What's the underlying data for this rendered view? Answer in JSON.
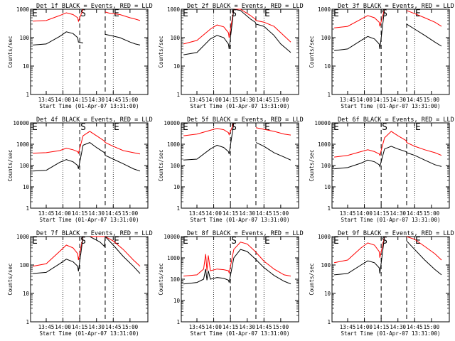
{
  "chart_data": [
    {
      "type": "line",
      "title": "Det 1f BLACK = Events, RED = LLD",
      "xlabel": "Start Time (01-Apr-07 13:31:00)",
      "ylabel": "Counts/sec",
      "ylim": [
        1,
        1000
      ],
      "x_ticks": [
        "13:45",
        "14:00",
        "14:15",
        "14:30",
        "14:45",
        "15:00"
      ],
      "y_ticks": [
        "1",
        "10",
        "100",
        "1000"
      ],
      "markers": [
        "E",
        "S",
        "E"
      ],
      "series": [
        {
          "name": "Events",
          "color": "#000000",
          "x": [
            13.55,
            13.75,
            13.95,
            14.05,
            14.15,
            14.22,
            14.23,
            14.3,
            14.62,
            14.63,
            14.7,
            14.85,
            15.0,
            15.08,
            15.15
          ],
          "y": [
            55,
            60,
            110,
            160,
            140,
            100,
            70,
            65,
            null,
            130,
            120,
            100,
            70,
            60,
            55
          ]
        },
        {
          "name": "LLD",
          "color": "#ff0000",
          "x": [
            13.55,
            13.75,
            13.95,
            14.05,
            14.15,
            14.22,
            14.23,
            14.3,
            14.62,
            14.63,
            14.7,
            14.85,
            15.0,
            15.08,
            15.15
          ],
          "y": [
            380,
            400,
            600,
            750,
            650,
            500,
            380,
            1000,
            null,
            800,
            720,
            650,
            500,
            450,
            400
          ]
        }
      ]
    },
    {
      "type": "line",
      "title": "Det 2f BLACK = Events, RED = LLD",
      "xlabel": "Start Time (01-Apr-07 13:31:00)",
      "ylabel": "Counts/sec",
      "ylim": [
        1,
        1000
      ],
      "x_ticks": [
        "13:45",
        "14:00",
        "14:15",
        "14:30",
        "14:45",
        "15:00"
      ],
      "y_ticks": [
        "1",
        "10",
        "100",
        "1000"
      ],
      "markers": [
        "E",
        "S",
        "E"
      ],
      "series": [
        {
          "name": "Events",
          "color": "#000000",
          "x": [
            13.55,
            13.75,
            13.95,
            14.05,
            14.15,
            14.22,
            14.23,
            14.3,
            14.4,
            14.55,
            14.62,
            14.63,
            14.75,
            14.9,
            15.0,
            15.15
          ],
          "y": [
            25,
            30,
            90,
            120,
            100,
            60,
            40,
            1000,
            900,
            450,
            350,
            300,
            250,
            120,
            60,
            30
          ]
        },
        {
          "name": "LLD",
          "color": "#ff0000",
          "x": [
            13.55,
            13.75,
            13.95,
            14.05,
            14.15,
            14.22,
            14.23,
            14.3,
            14.4,
            14.55,
            14.62,
            14.63,
            14.75,
            14.9,
            15.0,
            15.15
          ],
          "y": [
            60,
            80,
            200,
            280,
            240,
            150,
            100,
            1000,
            1000,
            600,
            450,
            400,
            350,
            250,
            150,
            70
          ]
        }
      ]
    },
    {
      "type": "line",
      "title": "Det 3f BLACK = Events, RED = LLD",
      "xlabel": "Start Time (01-Apr-07 13:31:00)",
      "ylabel": "Counts/sec",
      "ylim": [
        1,
        1000
      ],
      "x_ticks": [
        "13:45",
        "14:00",
        "14:15",
        "14:30",
        "14:45",
        "15:00"
      ],
      "y_ticks": [
        "1",
        "10",
        "100",
        "1000"
      ],
      "markers": [
        "E",
        "S",
        "E"
      ],
      "series": [
        {
          "name": "Events",
          "color": "#000000",
          "x": [
            13.55,
            13.75,
            13.95,
            14.05,
            14.15,
            14.22,
            14.23,
            14.3,
            14.62,
            14.63,
            14.75,
            14.9,
            15.05,
            15.15
          ],
          "y": [
            35,
            40,
            80,
            110,
            90,
            60,
            40,
            1000,
            null,
            300,
            200,
            120,
            70,
            50
          ]
        },
        {
          "name": "LLD",
          "color": "#ff0000",
          "x": [
            13.55,
            13.75,
            13.95,
            14.05,
            14.15,
            14.22,
            14.23,
            14.3,
            14.62,
            14.63,
            14.75,
            14.9,
            15.05,
            15.15
          ],
          "y": [
            220,
            250,
            450,
            600,
            500,
            350,
            250,
            1000,
            null,
            900,
            700,
            500,
            350,
            250
          ]
        }
      ]
    },
    {
      "type": "line",
      "title": "Det 4f BLACK = Events, RED = LLD",
      "xlabel": "Start Time (01-Apr-07 13:31:00)",
      "ylabel": "Counts/sec",
      "ylim": [
        1,
        10000
      ],
      "x_ticks": [
        "13:45",
        "14:00",
        "14:15",
        "14:30",
        "14:45",
        "15:00"
      ],
      "y_ticks": [
        "1",
        "10",
        "100",
        "1000",
        "10000"
      ],
      "markers": [
        "E",
        "S",
        "E"
      ],
      "series": [
        {
          "name": "Events",
          "color": "#000000",
          "x": [
            13.55,
            13.75,
            13.95,
            14.05,
            14.15,
            14.22,
            14.23,
            14.3,
            14.4,
            14.5,
            14.62,
            14.63,
            14.75,
            14.9,
            15.05,
            15.15
          ],
          "y": [
            55,
            60,
            140,
            190,
            150,
            100,
            70,
            900,
            1200,
            700,
            400,
            300,
            200,
            120,
            70,
            55
          ]
        },
        {
          "name": "LLD",
          "color": "#ff0000",
          "x": [
            13.55,
            13.75,
            13.95,
            14.05,
            14.15,
            14.22,
            14.23,
            14.3,
            14.4,
            14.5,
            14.62,
            14.63,
            14.75,
            14.9,
            15.05,
            15.15
          ],
          "y": [
            380,
            400,
            500,
            650,
            550,
            450,
            380,
            2500,
            4000,
            2500,
            1400,
            1200,
            800,
            500,
            400,
            350
          ]
        }
      ]
    },
    {
      "type": "line",
      "title": "Det 5f BLACK = Events, RED = LLD",
      "xlabel": "Start Time (01-Apr-07 13:31:00)",
      "ylabel": "Counts/sec",
      "ylim": [
        1,
        10000
      ],
      "x_ticks": [
        "13:45",
        "14:00",
        "14:15",
        "14:30",
        "14:45",
        "15:00"
      ],
      "y_ticks": [
        "1",
        "10",
        "100",
        "1000",
        "10000"
      ],
      "markers": [
        "E",
        "S",
        "E"
      ],
      "series": [
        {
          "name": "Events",
          "color": "#000000",
          "x": [
            13.55,
            13.75,
            13.95,
            14.05,
            14.15,
            14.22,
            14.23,
            14.3,
            14.62,
            14.63,
            14.75,
            14.9,
            15.05,
            15.15
          ],
          "y": [
            180,
            200,
            600,
            900,
            700,
            450,
            350,
            10000,
            null,
            1200,
            800,
            400,
            250,
            180
          ]
        },
        {
          "name": "LLD",
          "color": "#ff0000",
          "x": [
            13.55,
            13.75,
            13.95,
            14.05,
            14.15,
            14.22,
            14.23,
            14.3,
            14.62,
            14.63,
            14.75,
            14.9,
            15.05,
            15.15
          ],
          "y": [
            2500,
            3000,
            4500,
            5500,
            4800,
            3500,
            2800,
            10000,
            null,
            6000,
            5000,
            4000,
            3000,
            2700
          ]
        }
      ]
    },
    {
      "type": "line",
      "title": "Det 6f BLACK = Events, RED = LLD",
      "xlabel": "Start Time (01-Apr-07 13:31:00)",
      "ylabel": "Counts/sec",
      "ylim": [
        1,
        10000
      ],
      "x_ticks": [
        "13:45",
        "14:00",
        "14:15",
        "14:30",
        "14:45",
        "15:00"
      ],
      "y_ticks": [
        "1",
        "10",
        "100",
        "1000",
        "10000"
      ],
      "markers": [
        "E",
        "S",
        "E"
      ],
      "series": [
        {
          "name": "Events",
          "color": "#000000",
          "x": [
            13.55,
            13.75,
            13.95,
            14.05,
            14.15,
            14.22,
            14.23,
            14.3,
            14.4,
            14.5,
            14.62,
            14.63,
            14.75,
            14.9,
            15.05,
            15.15
          ],
          "y": [
            70,
            80,
            130,
            180,
            150,
            110,
            90,
            600,
            800,
            600,
            450,
            400,
            300,
            180,
            110,
            90
          ]
        },
        {
          "name": "LLD",
          "color": "#ff0000",
          "x": [
            13.55,
            13.75,
            13.95,
            14.05,
            14.15,
            14.22,
            14.23,
            14.3,
            14.4,
            14.5,
            14.62,
            14.63,
            14.75,
            14.9,
            15.05,
            15.15
          ],
          "y": [
            250,
            300,
            450,
            550,
            450,
            350,
            300,
            2000,
            4000,
            2500,
            1500,
            1200,
            800,
            550,
            400,
            300
          ]
        }
      ]
    },
    {
      "type": "line",
      "title": "Det 7f BLACK = Events, RED = LLD",
      "xlabel": "Start Time (01-Apr-07 13:31:00)",
      "ylabel": "Counts/sec",
      "ylim": [
        1,
        1000
      ],
      "x_ticks": [
        "13:45",
        "14:00",
        "14:15",
        "14:30",
        "14:45",
        "15:00"
      ],
      "y_ticks": [
        "1",
        "10",
        "100",
        "1000"
      ],
      "markers": [
        "E",
        "S",
        "E"
      ],
      "series": [
        {
          "name": "Events",
          "color": "#000000",
          "x": [
            13.55,
            13.75,
            13.95,
            14.05,
            14.15,
            14.22,
            14.23,
            14.3,
            14.4,
            14.55,
            14.62,
            14.63,
            14.75,
            14.9,
            15.05,
            15.15
          ],
          "y": [
            50,
            55,
            110,
            160,
            130,
            90,
            60,
            1000,
            1000,
            650,
            450,
            1000,
            500,
            200,
            90,
            50
          ]
        },
        {
          "name": "LLD",
          "color": "#ff0000",
          "x": [
            13.55,
            13.75,
            13.95,
            14.05,
            14.15,
            14.22,
            14.23,
            14.3,
            14.4,
            14.55,
            14.62,
            14.63,
            14.75,
            14.9,
            15.05,
            15.15
          ],
          "y": [
            90,
            110,
            300,
            500,
            400,
            250,
            150,
            1000,
            1000,
            1000,
            1000,
            1000,
            700,
            350,
            150,
            90
          ]
        }
      ]
    },
    {
      "type": "line",
      "title": "Det 8f BLACK = Events, RED = LLD",
      "xlabel": "Start Time (01-Apr-07 13:31:00)",
      "ylabel": "Counts/sec",
      "ylim": [
        1,
        10000
      ],
      "x_ticks": [
        "13:45",
        "14:00",
        "14:15",
        "14:30",
        "14:45",
        "15:00"
      ],
      "y_ticks": [
        "1",
        "10",
        "100",
        "1000",
        "10000"
      ],
      "markers": [
        "E",
        "S",
        "E"
      ],
      "series": [
        {
          "name": "Events",
          "color": "#000000",
          "x": [
            13.55,
            13.75,
            13.85,
            13.88,
            13.9,
            13.92,
            13.95,
            14.05,
            14.15,
            14.22,
            14.23,
            14.3,
            14.4,
            14.5,
            14.62,
            14.75,
            14.9,
            15.05,
            15.15
          ],
          "y": [
            60,
            70,
            100,
            300,
            90,
            250,
            100,
            120,
            110,
            90,
            70,
            1000,
            2500,
            2000,
            900,
            350,
            150,
            80,
            60
          ]
        },
        {
          "name": "LLD",
          "color": "#ff0000",
          "x": [
            13.55,
            13.75,
            13.85,
            13.88,
            13.9,
            13.92,
            13.95,
            14.05,
            14.15,
            14.22,
            14.23,
            14.3,
            14.4,
            14.5,
            14.62,
            14.75,
            14.9,
            15.05,
            15.15
          ],
          "y": [
            140,
            160,
            300,
            1500,
            250,
            1300,
            250,
            300,
            280,
            250,
            200,
            2500,
            5500,
            4500,
            2000,
            700,
            300,
            160,
            140
          ]
        }
      ]
    },
    {
      "type": "line",
      "title": "Det 9f BLACK = Events, RED = LLD",
      "xlabel": "Start Time (01-Apr-07 13:31:00)",
      "ylabel": "Counts/sec",
      "ylim": [
        1,
        1000
      ],
      "x_ticks": [
        "13:45",
        "14:00",
        "14:15",
        "14:30",
        "14:45",
        "15:00"
      ],
      "y_ticks": [
        "1",
        "10",
        "100",
        "1000"
      ],
      "markers": [
        "E",
        "S",
        "E"
      ],
      "series": [
        {
          "name": "Events",
          "color": "#000000",
          "x": [
            13.55,
            13.75,
            13.95,
            14.05,
            14.15,
            14.22,
            14.23,
            14.3,
            14.62,
            14.63,
            14.75,
            14.9,
            15.05,
            15.15
          ],
          "y": [
            45,
            50,
            100,
            140,
            120,
            80,
            50,
            1000,
            null,
            700,
            350,
            150,
            70,
            45
          ]
        },
        {
          "name": "LLD",
          "color": "#ff0000",
          "x": [
            13.55,
            13.75,
            13.95,
            14.05,
            14.15,
            14.22,
            14.23,
            14.3,
            14.62,
            14.63,
            14.75,
            14.9,
            15.05,
            15.15
          ],
          "y": [
            120,
            150,
            400,
            600,
            500,
            300,
            180,
            1000,
            null,
            1000,
            800,
            450,
            250,
            150
          ]
        }
      ]
    }
  ]
}
